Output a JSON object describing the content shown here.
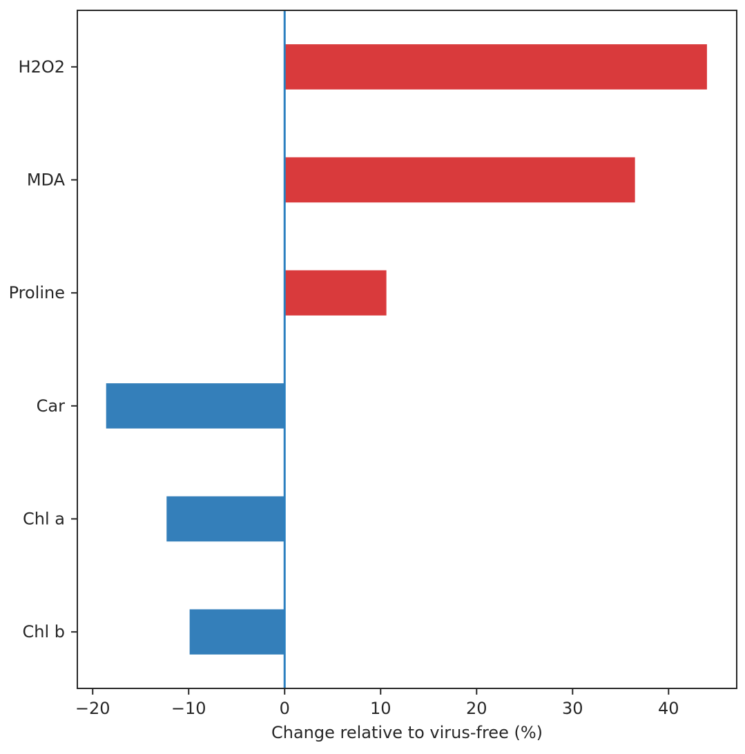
{
  "chart_data": {
    "type": "bar",
    "orientation": "horizontal",
    "categories": [
      "H2O2",
      "MDA",
      "Proline",
      "Car",
      "Chl a",
      "Chl b"
    ],
    "values": [
      44.0,
      36.5,
      10.6,
      -18.6,
      -12.3,
      -9.9
    ],
    "colors": {
      "positive": "#d93a3c",
      "negative": "#347fba",
      "zero_line": "#2c80c0",
      "axis": "#262626"
    },
    "xlabel": "Change relative to virus-free (%)",
    "ylabel": "",
    "xlim": [
      -21.6,
      47.1
    ],
    "xticks": [
      -20,
      -10,
      0,
      10,
      20,
      30,
      40
    ],
    "xtick_labels": [
      "−20",
      "−10",
      "0",
      "10",
      "20",
      "30",
      "40"
    ],
    "grid": false,
    "legend": "none"
  }
}
